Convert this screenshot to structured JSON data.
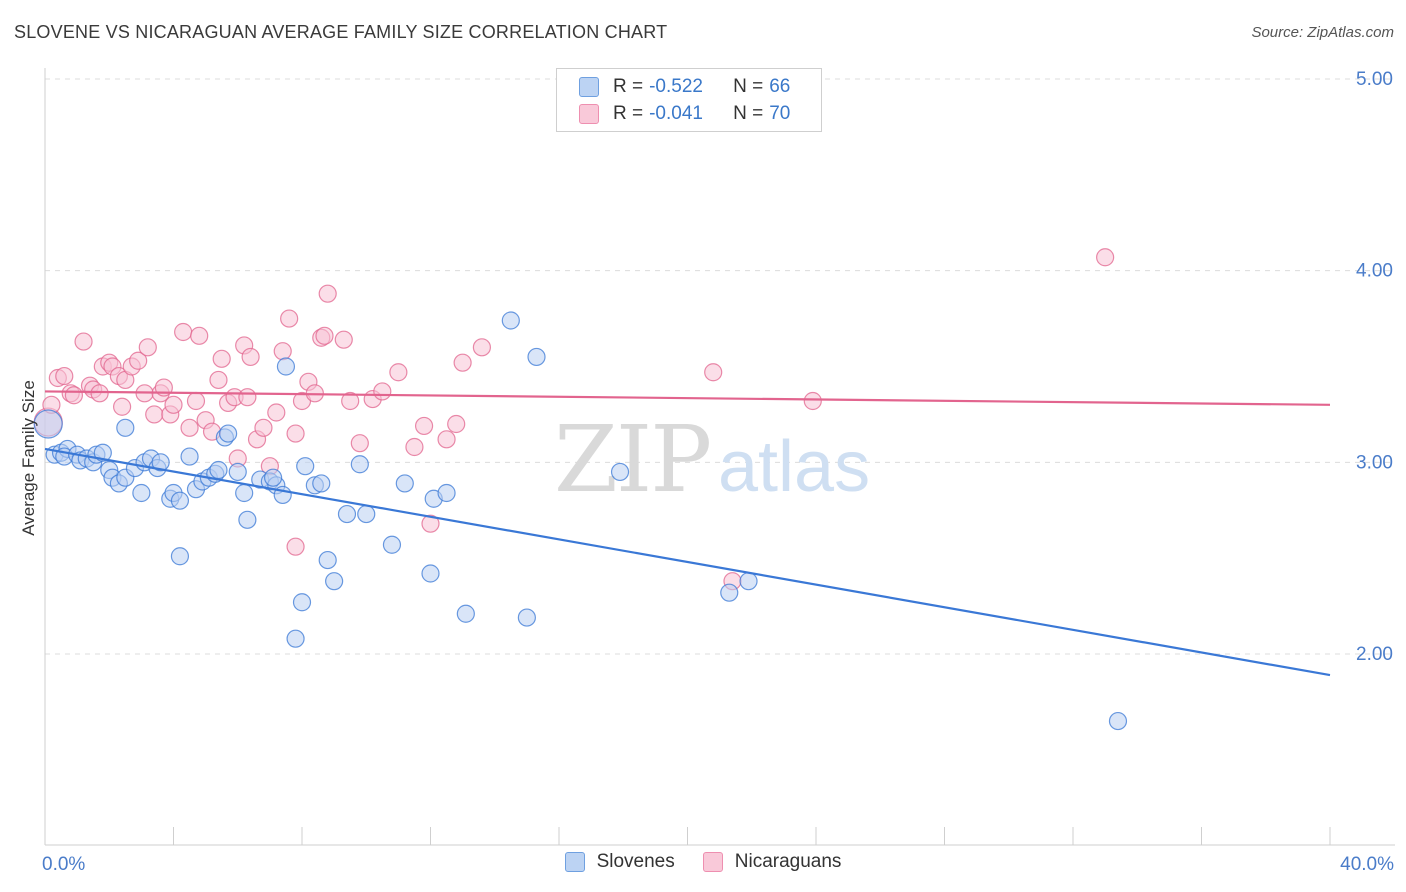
{
  "title": "SLOVENE VS NICARAGUAN AVERAGE FAMILY SIZE CORRELATION CHART",
  "source": "Source: ZipAtlas.com",
  "watermark": {
    "zip": "ZIP",
    "atlas": "atlas"
  },
  "legend": {
    "rows": [
      {
        "r_label": "R =",
        "r_value": "-0.522",
        "n_label": "N =",
        "n_value": "66",
        "color": "#6fa0e0",
        "fill": "#bcd3f3"
      },
      {
        "r_label": "R =",
        "r_value": "-0.041",
        "n_label": "N =",
        "n_value": "70",
        "color": "#ee8fb0",
        "fill": "#f9c9d9"
      }
    ]
  },
  "bottom_legend": [
    "Slovenes",
    "Nicaraguans"
  ],
  "chart_data": {
    "type": "scatter",
    "xlabel": "",
    "ylabel": "Average Family Size",
    "xlim": [
      0,
      40
    ],
    "ylim": [
      1.0,
      5.1
    ],
    "x_tick_labels": [
      {
        "x": 0,
        "label": "0.0%"
      },
      {
        "x": 40,
        "label": "40.0%"
      }
    ],
    "y_ticks": [
      2.0,
      3.0,
      4.0,
      5.0
    ],
    "y_tick_labels": [
      "2.00",
      "3.00",
      "4.00",
      "5.00"
    ],
    "x_minor_ticks": [
      0,
      4,
      8,
      12,
      16,
      20,
      24,
      28,
      32,
      36,
      40
    ],
    "grid": {
      "horizontal_dashed": true
    },
    "series": [
      {
        "name": "Slovenes",
        "color": "#3a78d6",
        "fill": "#b9d0f2",
        "trend": {
          "x": [
            0,
            40
          ],
          "y": [
            3.07,
            1.89
          ]
        },
        "points": [
          [
            0.1,
            3.2
          ],
          [
            0.3,
            3.04
          ],
          [
            0.5,
            3.05
          ],
          [
            0.7,
            3.07
          ],
          [
            0.6,
            3.03
          ],
          [
            1.0,
            3.04
          ],
          [
            1.1,
            3.01
          ],
          [
            1.3,
            3.02
          ],
          [
            1.5,
            3.0
          ],
          [
            1.6,
            3.04
          ],
          [
            1.8,
            3.05
          ],
          [
            2.0,
            2.96
          ],
          [
            2.1,
            2.92
          ],
          [
            2.3,
            2.89
          ],
          [
            2.5,
            2.92
          ],
          [
            2.8,
            2.97
          ],
          [
            3.0,
            2.84
          ],
          [
            3.1,
            3.0
          ],
          [
            3.3,
            3.02
          ],
          [
            3.5,
            2.97
          ],
          [
            3.6,
            3.0
          ],
          [
            3.9,
            2.81
          ],
          [
            4.0,
            2.84
          ],
          [
            4.2,
            2.8
          ],
          [
            4.5,
            3.03
          ],
          [
            4.7,
            2.86
          ],
          [
            4.9,
            2.9
          ],
          [
            5.1,
            2.92
          ],
          [
            5.3,
            2.94
          ],
          [
            5.4,
            2.96
          ],
          [
            5.6,
            3.13
          ],
          [
            5.7,
            3.15
          ],
          [
            6.0,
            2.95
          ],
          [
            6.2,
            2.84
          ],
          [
            6.3,
            2.7
          ],
          [
            6.7,
            2.91
          ],
          [
            7.0,
            2.9
          ],
          [
            7.2,
            2.88
          ],
          [
            7.4,
            2.83
          ],
          [
            2.5,
            3.18
          ],
          [
            4.2,
            2.51
          ],
          [
            7.5,
            3.5
          ],
          [
            7.8,
            2.08
          ],
          [
            8.0,
            2.27
          ],
          [
            8.1,
            2.98
          ],
          [
            8.4,
            2.88
          ],
          [
            8.6,
            2.89
          ],
          [
            8.8,
            2.49
          ],
          [
            9.0,
            2.38
          ],
          [
            9.4,
            2.73
          ],
          [
            9.8,
            2.99
          ],
          [
            10.0,
            2.73
          ],
          [
            10.8,
            2.57
          ],
          [
            11.2,
            2.89
          ],
          [
            12.0,
            2.42
          ],
          [
            12.1,
            2.81
          ],
          [
            12.5,
            2.84
          ],
          [
            13.1,
            2.21
          ],
          [
            14.5,
            3.74
          ],
          [
            15.0,
            2.19
          ],
          [
            15.3,
            3.55
          ],
          [
            17.9,
            2.95
          ],
          [
            21.3,
            2.32
          ],
          [
            21.9,
            2.38
          ],
          [
            33.4,
            1.65
          ],
          [
            7.1,
            2.92
          ]
        ]
      },
      {
        "name": "Nicaraguans",
        "color": "#e2648e",
        "fill": "#f7c3d5",
        "trend": {
          "x": [
            0,
            40
          ],
          "y": [
            3.37,
            3.3
          ]
        },
        "points": [
          [
            0.1,
            3.21
          ],
          [
            0.2,
            3.3
          ],
          [
            0.4,
            3.44
          ],
          [
            0.6,
            3.45
          ],
          [
            0.8,
            3.36
          ],
          [
            0.9,
            3.35
          ],
          [
            1.2,
            3.63
          ],
          [
            1.4,
            3.4
          ],
          [
            1.5,
            3.38
          ],
          [
            1.7,
            3.36
          ],
          [
            1.8,
            3.5
          ],
          [
            2.0,
            3.52
          ],
          [
            2.1,
            3.5
          ],
          [
            2.3,
            3.45
          ],
          [
            2.4,
            3.29
          ],
          [
            2.5,
            3.43
          ],
          [
            2.7,
            3.5
          ],
          [
            2.9,
            3.53
          ],
          [
            3.1,
            3.36
          ],
          [
            3.2,
            3.6
          ],
          [
            3.4,
            3.25
          ],
          [
            3.6,
            3.36
          ],
          [
            3.7,
            3.39
          ],
          [
            3.9,
            3.25
          ],
          [
            4.0,
            3.3
          ],
          [
            4.3,
            3.68
          ],
          [
            4.5,
            3.18
          ],
          [
            4.7,
            3.32
          ],
          [
            4.8,
            3.66
          ],
          [
            5.0,
            3.22
          ],
          [
            5.2,
            3.16
          ],
          [
            5.4,
            3.43
          ],
          [
            5.5,
            3.54
          ],
          [
            5.7,
            3.31
          ],
          [
            5.9,
            3.34
          ],
          [
            6.0,
            3.02
          ],
          [
            6.2,
            3.61
          ],
          [
            6.3,
            3.34
          ],
          [
            6.4,
            3.55
          ],
          [
            6.6,
            3.12
          ],
          [
            6.8,
            3.18
          ],
          [
            7.0,
            2.98
          ],
          [
            7.2,
            3.26
          ],
          [
            7.4,
            3.58
          ],
          [
            7.6,
            3.75
          ],
          [
            7.8,
            3.15
          ],
          [
            7.8,
            2.56
          ],
          [
            8.0,
            3.32
          ],
          [
            8.2,
            3.42
          ],
          [
            8.4,
            3.36
          ],
          [
            8.6,
            3.65
          ],
          [
            8.7,
            3.66
          ],
          [
            8.8,
            3.88
          ],
          [
            9.3,
            3.64
          ],
          [
            9.5,
            3.32
          ],
          [
            9.8,
            3.1
          ],
          [
            10.2,
            3.33
          ],
          [
            10.5,
            3.37
          ],
          [
            11.0,
            3.47
          ],
          [
            11.5,
            3.08
          ],
          [
            11.8,
            3.19
          ],
          [
            12.0,
            2.68
          ],
          [
            12.5,
            3.12
          ],
          [
            12.8,
            3.2
          ],
          [
            13.0,
            3.52
          ],
          [
            13.6,
            3.6
          ],
          [
            20.8,
            3.47
          ],
          [
            21.4,
            2.38
          ],
          [
            23.9,
            3.32
          ],
          [
            33.0,
            4.07
          ]
        ]
      }
    ]
  }
}
